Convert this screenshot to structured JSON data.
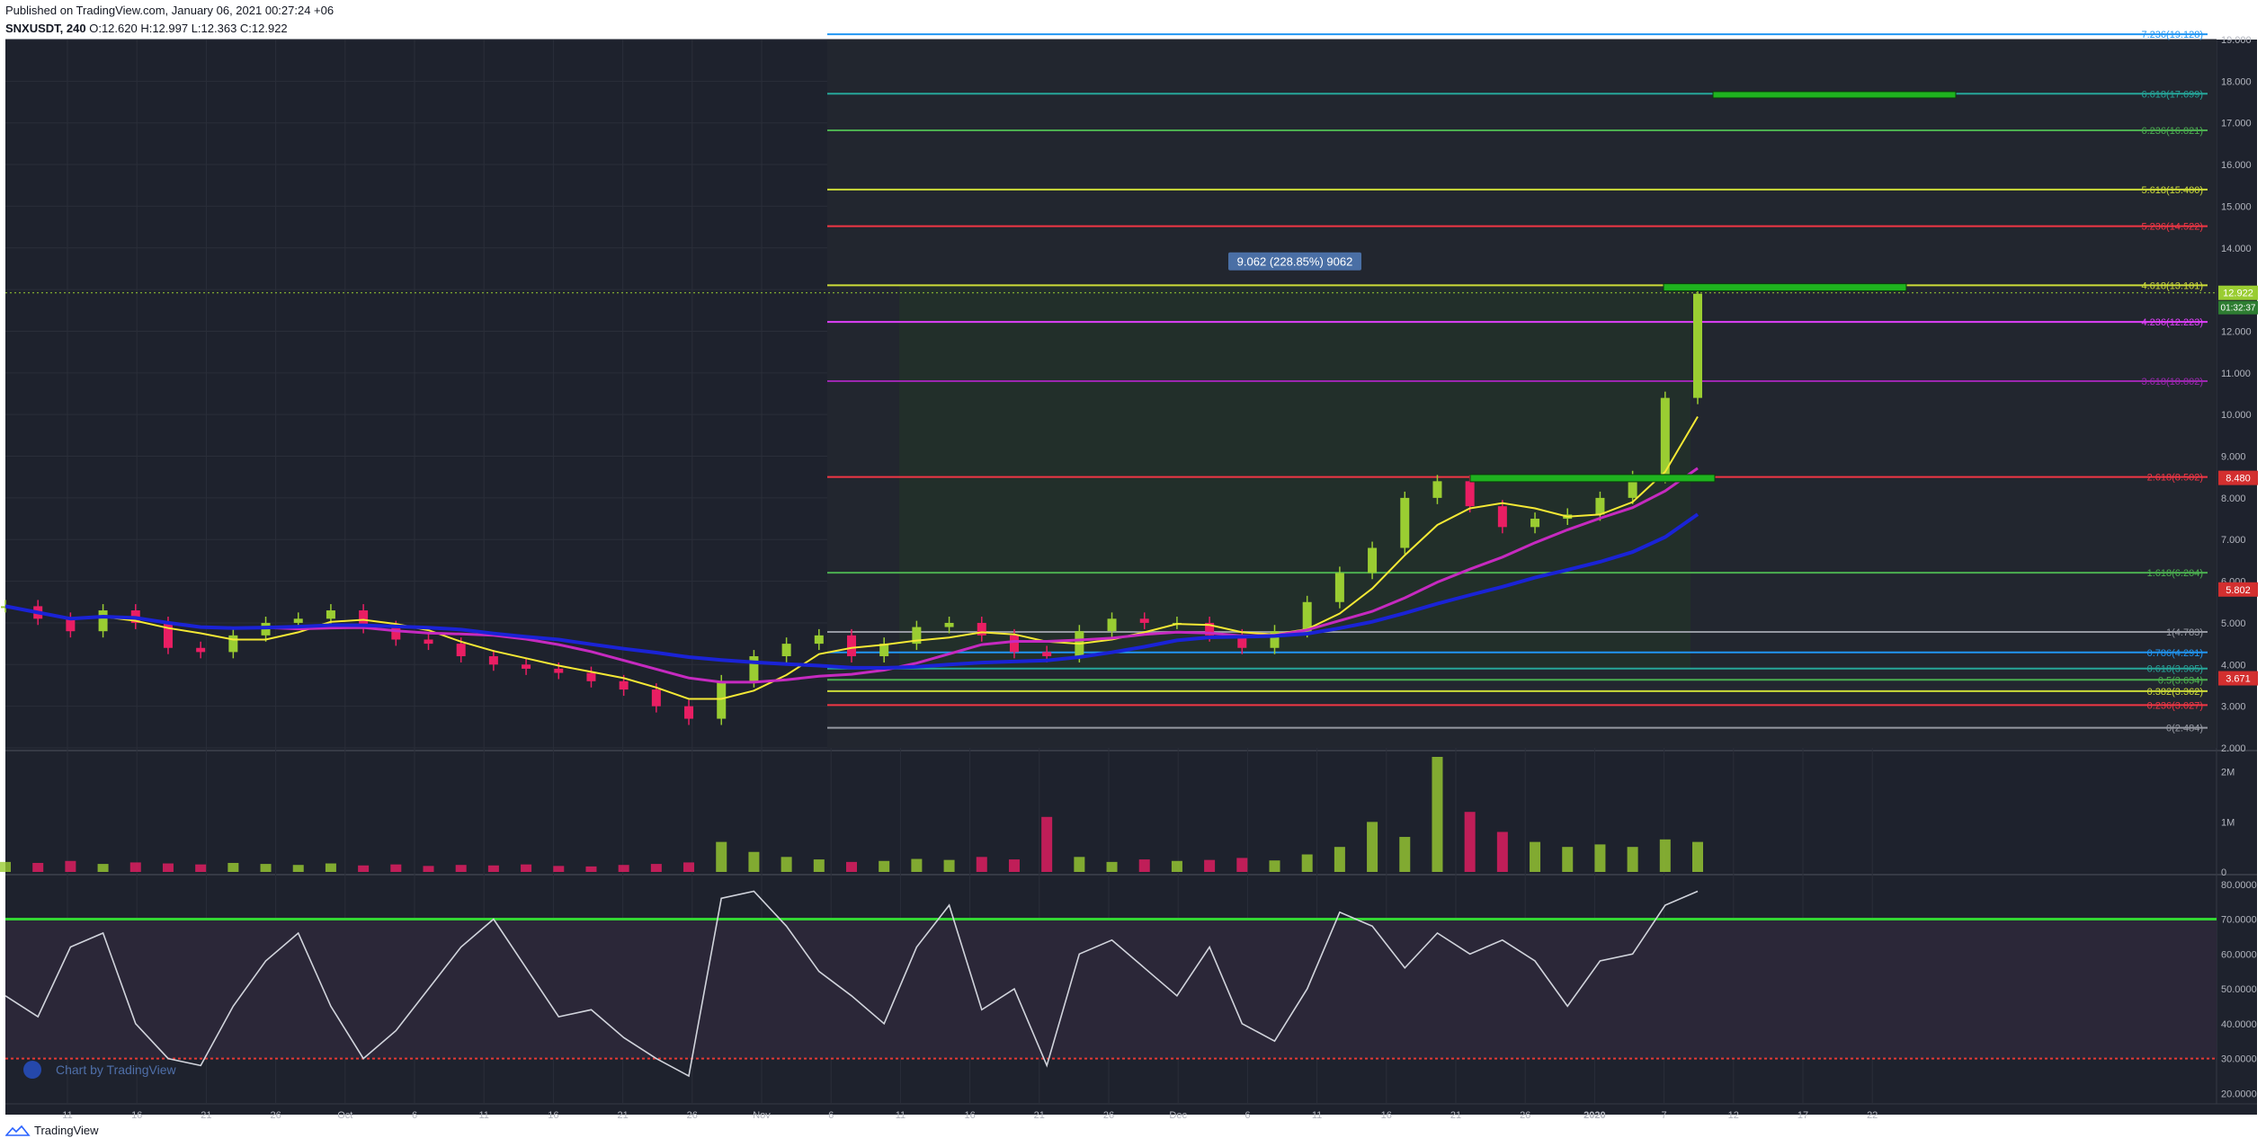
{
  "header": {
    "published": "Published on TradingView.com, January 06, 2021 00:27:24 +06",
    "symbol": "SNXUSDT, 240",
    "ohlc": "O:12.620 H:12.997 L:12.363 C:12.922"
  },
  "footer": {
    "brand": "TradingView"
  },
  "watermark": "Chart by TradingView",
  "measure_label": "9.062 (228.85%) 9062",
  "price_tags": {
    "last": "12.922",
    "countdown": "01:32:37"
  },
  "colors": {
    "background": "#1e222d",
    "pane_border": "#363a45",
    "axis_text": "#b2b5be",
    "up": "#9acd32",
    "down": "#e91e63",
    "ma_yellow": "#f5e935",
    "ma_magenta": "#c62ac0",
    "ma_blue": "#1a23d6",
    "rsi": "#d1d4dc"
  },
  "chart_data": {
    "type": "candlestick",
    "symbol": "SNXUSDT",
    "interval": "240",
    "grid": true,
    "y_axis": {
      "min": 2.0,
      "max": 19.0,
      "ticks": [
        "19.000",
        "18.000",
        "17.000",
        "16.000",
        "15.000",
        "14.000",
        "13.000",
        "12.000",
        "11.000",
        "10.000",
        "9.000",
        "8.000",
        "7.000",
        "6.000",
        "5.000",
        "4.000",
        "3.000",
        "2.000"
      ],
      "tick_values": [
        19,
        18,
        17,
        16,
        15,
        14,
        13,
        12,
        11,
        10,
        9,
        8,
        7,
        6,
        5,
        4,
        3,
        2
      ]
    },
    "x_axis": {
      "ticks": [
        "11",
        "16",
        "21",
        "26",
        "Oct",
        "6",
        "11",
        "16",
        "21",
        "26",
        "Nov",
        "6",
        "11",
        "16",
        "21",
        "26",
        "Dec",
        "6",
        "11",
        "16",
        "21",
        "26",
        "2020",
        "7",
        "12",
        "17",
        "22"
      ],
      "tick_index": [
        0,
        1,
        2,
        3,
        4,
        5,
        6,
        7,
        8,
        9,
        10,
        11,
        12,
        13,
        14,
        15,
        16,
        17,
        18,
        19,
        20,
        21,
        22,
        23,
        24,
        25,
        26
      ]
    },
    "fib_levels": [
      {
        "label": "7.236(19.128)",
        "value": 19.128,
        "color": "#2196f3"
      },
      {
        "label": "6.618(17.699)",
        "value": 17.699,
        "color": "#26a69a"
      },
      {
        "label": "6.236(16.821)",
        "value": 16.821,
        "color": "#4caf50"
      },
      {
        "label": "5.618(15.400)",
        "value": 15.4,
        "color": "#cddc39"
      },
      {
        "label": "5.236(14.522)",
        "value": 14.522,
        "color": "#f23645"
      },
      {
        "label": "4.618(13.101)",
        "value": 13.101,
        "color": "#cddc39"
      },
      {
        "label": "4.236(12.223)",
        "value": 12.223,
        "color": "#e040fb"
      },
      {
        "label": "3.618(10.802)",
        "value": 10.802,
        "color": "#9c27b0"
      },
      {
        "label": "2.618(8.502)",
        "value": 8.502,
        "color": "#f23645"
      },
      {
        "label": "1.618(6.204)",
        "value": 6.204,
        "color": "#4caf50"
      },
      {
        "label": "1(4.783)",
        "value": 4.783,
        "color": "#9598a1"
      },
      {
        "label": "0.786(4.291)",
        "value": 4.291,
        "color": "#2196f3"
      },
      {
        "label": "0.618(3.905)",
        "value": 3.905,
        "color": "#26a69a"
      },
      {
        "label": "0.5(3.634)",
        "value": 3.634,
        "color": "#4caf50"
      },
      {
        "label": "0.382(3.362)",
        "value": 3.362,
        "color": "#cddc39"
      },
      {
        "label": "0.236(3.027)",
        "value": 3.027,
        "color": "#f23645"
      },
      {
        "label": "0(2.484)",
        "value": 2.484,
        "color": "#9598a1"
      }
    ],
    "price_labels": [
      {
        "text": "12.922",
        "value": 12.922,
        "color": "#9acd32"
      },
      {
        "text": "8.480",
        "value": 8.48,
        "color": "#d32f2f"
      },
      {
        "text": "5.802",
        "value": 5.802,
        "color": "#d32f2f"
      },
      {
        "text": "3.671",
        "value": 3.671,
        "color": "#d32f2f"
      }
    ],
    "close_series": [
      5.4,
      5.1,
      4.8,
      5.3,
      5.0,
      4.4,
      4.3,
      4.7,
      5.0,
      5.1,
      5.3,
      4.9,
      4.6,
      4.5,
      4.2,
      4.0,
      3.9,
      3.8,
      3.6,
      3.4,
      3.0,
      2.7,
      3.6,
      4.2,
      4.5,
      4.7,
      4.2,
      4.5,
      4.9,
      5.0,
      4.7,
      4.3,
      4.2,
      4.8,
      5.1,
      5.0,
      5.0,
      4.7,
      4.4,
      4.8,
      5.5,
      6.2,
      6.8,
      8.0,
      8.4,
      7.8,
      7.3,
      7.5,
      7.6,
      8.0,
      8.5,
      10.4,
      12.9
    ],
    "volume": {
      "ticks": [
        "2M",
        "1M",
        "0"
      ],
      "tick_values": [
        2000000,
        1000000,
        0
      ],
      "max": 2300000,
      "values": [
        200000,
        180000,
        220000,
        160000,
        190000,
        170000,
        150000,
        180000,
        160000,
        140000,
        170000,
        130000,
        150000,
        120000,
        140000,
        130000,
        150000,
        120000,
        110000,
        140000,
        160000,
        190000,
        600000,
        400000,
        300000,
        250000,
        200000,
        220000,
        260000,
        240000,
        300000,
        250000,
        1100000,
        300000,
        200000,
        250000,
        220000,
        240000,
        280000,
        230000,
        350000,
        500000,
        1000000,
        700000,
        2300000,
        1200000,
        800000,
        600000,
        500000,
        550000,
        500000,
        650000,
        600000
      ]
    },
    "rsi": {
      "ticks": [
        "80.0000",
        "70.0000",
        "60.0000",
        "50.0000",
        "40.0000",
        "30.0000",
        "20.0000"
      ],
      "tick_values": [
        80,
        70,
        60,
        50,
        40,
        30,
        20
      ],
      "min": 17,
      "max": 82,
      "overbought": 70,
      "oversold": 30,
      "values": [
        48,
        42,
        62,
        66,
        40,
        30,
        28,
        45,
        58,
        66,
        45,
        30,
        38,
        50,
        62,
        70,
        56,
        42,
        44,
        36,
        30,
        25,
        76,
        78,
        68,
        55,
        48,
        40,
        62,
        74,
        44,
        50,
        28,
        60,
        64,
        56,
        48,
        62,
        40,
        35,
        50,
        72,
        68,
        56,
        66,
        60,
        64,
        58,
        45,
        58,
        60,
        74,
        78
      ]
    }
  }
}
